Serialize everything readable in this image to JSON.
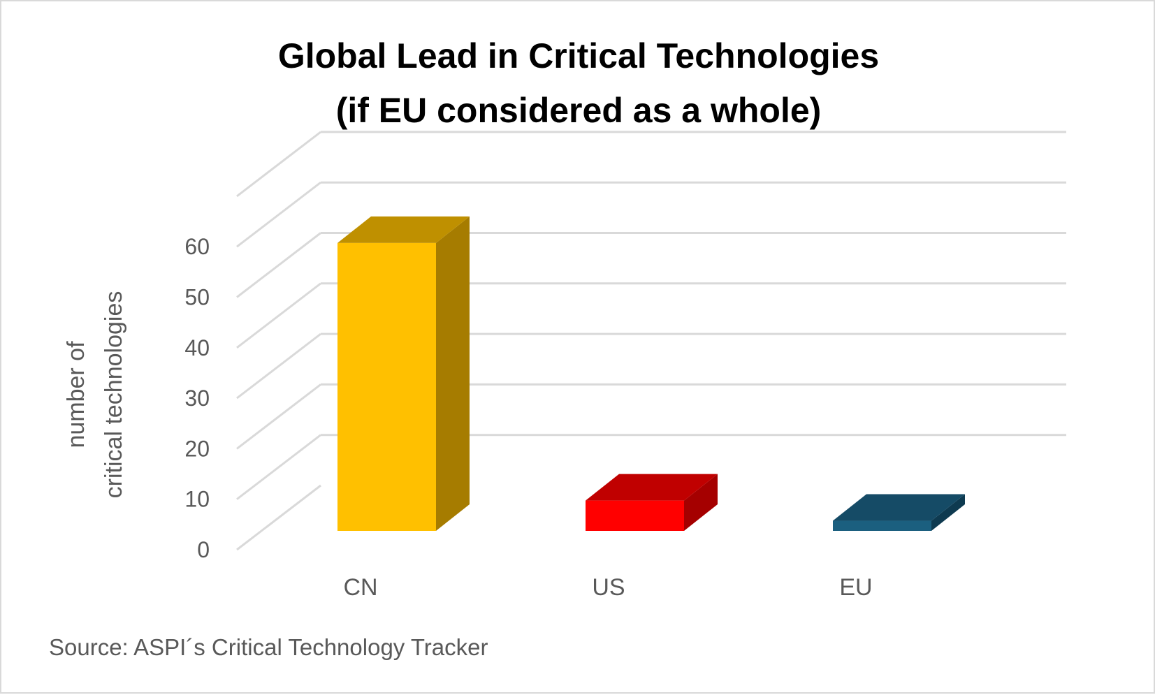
{
  "chart_data": {
    "type": "bar",
    "title_lines": [
      "Global Lead in Critical Technologies",
      "(if EU considered as a whole)"
    ],
    "categories": [
      "CN",
      "US",
      "EU"
    ],
    "values": [
      57,
      6,
      2
    ],
    "ylabel_lines": [
      "number of",
      "critical technologies"
    ],
    "yticks": [
      0,
      10,
      20,
      30,
      40,
      50,
      60
    ],
    "ylim": [
      0,
      70
    ],
    "grid": true,
    "colors": [
      {
        "front": "#FFC000",
        "side": "#A67C00",
        "top": "#BF9000"
      },
      {
        "front": "#FF0000",
        "side": "#A50000",
        "top": "#C00000"
      },
      {
        "front": "#1B5F7F",
        "side": "#0E3A50",
        "top": "#154B66"
      }
    ],
    "source": "Source: ASPI´s Critical Technology Tracker"
  }
}
